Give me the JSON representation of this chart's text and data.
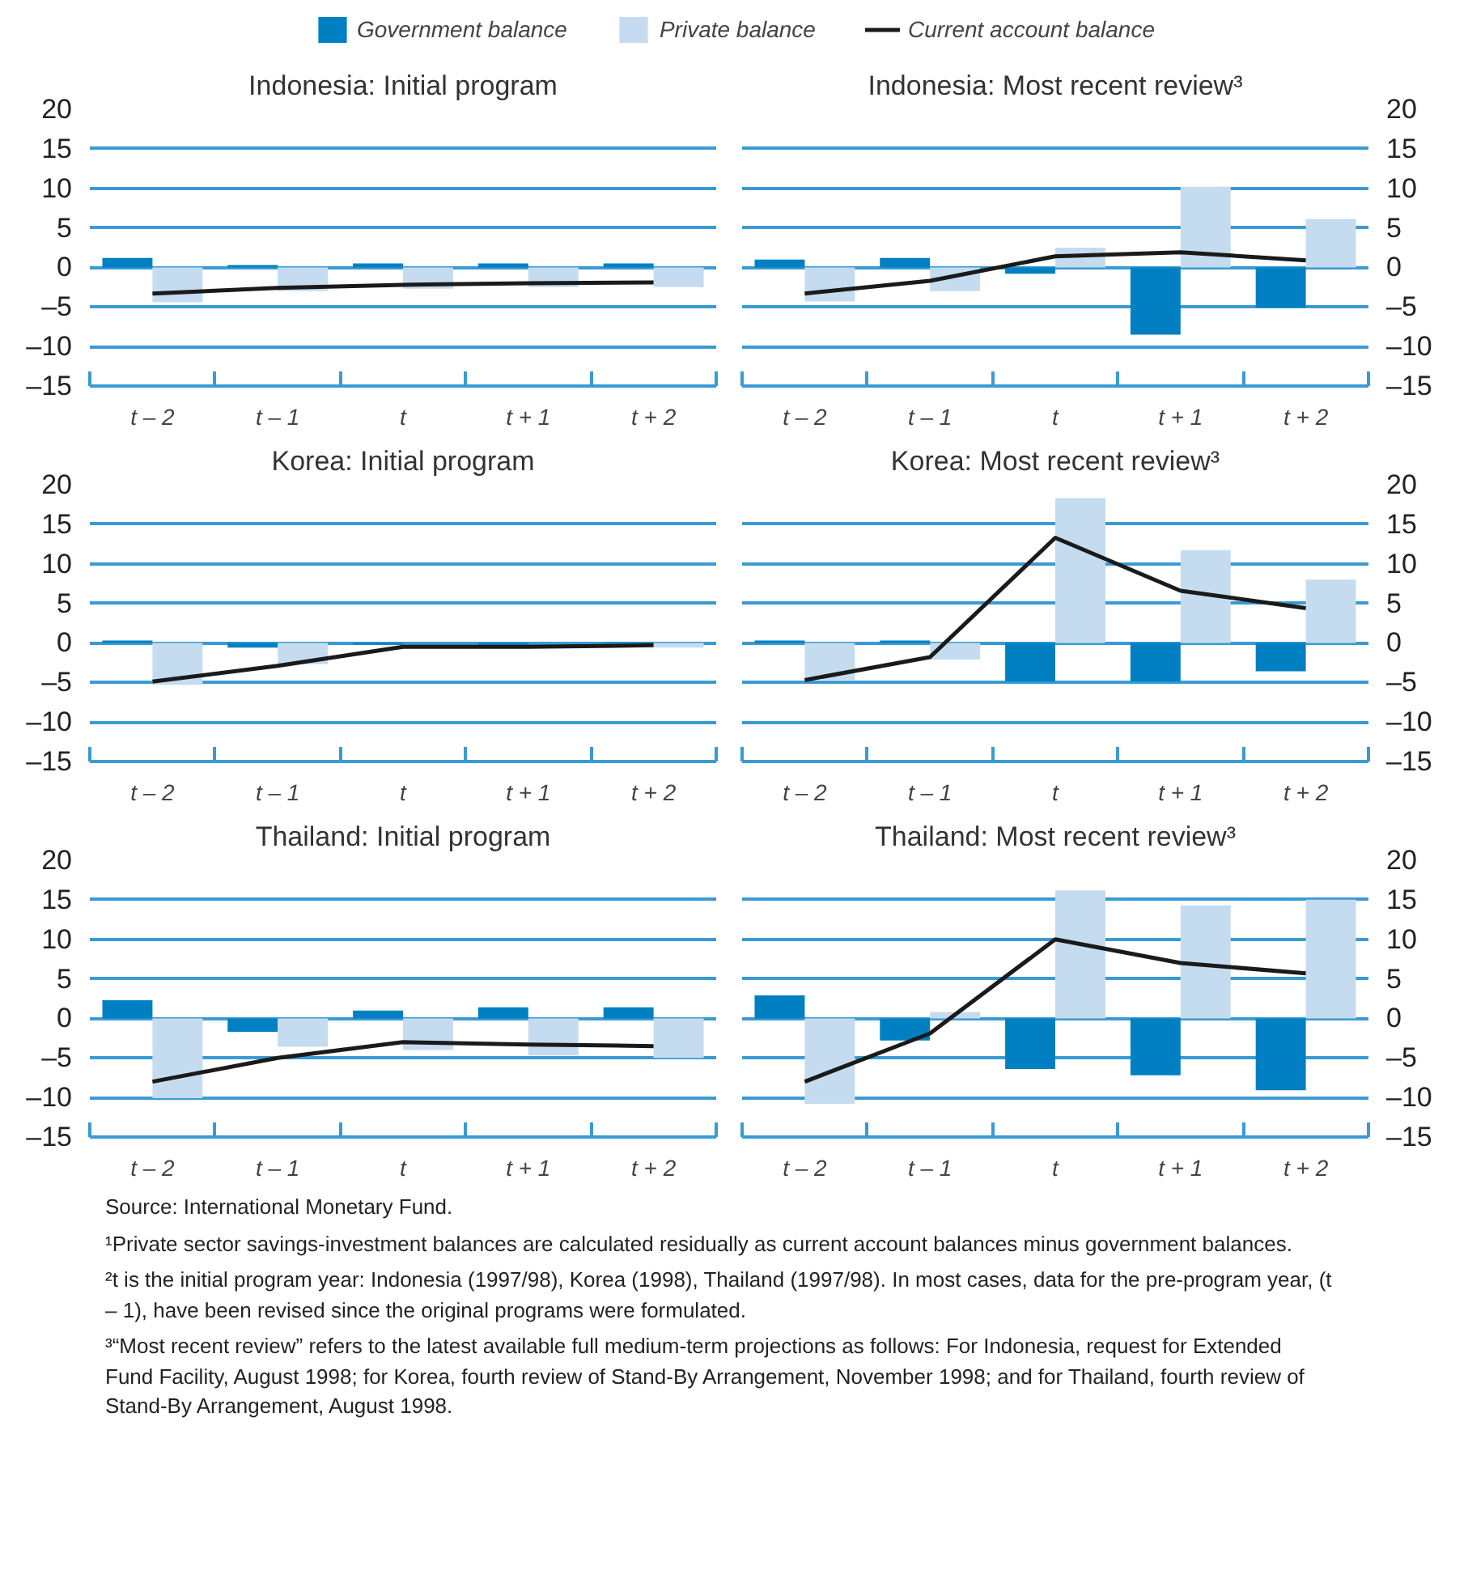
{
  "chart_data": [
    {
      "type": "bar",
      "title": "Indonesia: Initial program",
      "categories": [
        "t – 2",
        "t – 1",
        "t",
        "t + 1",
        "t + 2"
      ],
      "legend": "top",
      "grid": "y",
      "ylim": [
        -15,
        20
      ],
      "yticks": [
        {
          "value": -15,
          "label": "–15"
        },
        {
          "value": -10,
          "label": "–10"
        },
        {
          "value": -5,
          "label": "–5"
        },
        0,
        5,
        10,
        15,
        20
      ],
      "series": [
        {
          "name": "Government balance",
          "color": "#0080c3",
          "values": [
            1.2,
            0.3,
            0.5,
            0.5,
            0.5
          ]
        },
        {
          "name": "Private balance",
          "color": "#c5dbef",
          "values": [
            -4.4,
            -3.0,
            -2.7,
            -2.5,
            -2.5
          ]
        },
        {
          "name": "Current account balance",
          "type": "line",
          "color": "#1a1a1a",
          "values": [
            -3.3,
            -2.6,
            -2.2,
            -2.0,
            -1.9
          ]
        }
      ]
    },
    {
      "type": "bar",
      "title": "Indonesia: Most recent review³",
      "categories": [
        "t – 2",
        "t – 1",
        "t",
        "t + 1",
        "t + 2"
      ],
      "grid": "y",
      "ylim": [
        -15,
        20
      ],
      "yticks": [
        {
          "value": -15,
          "label": "–15"
        },
        {
          "value": -10,
          "label": "–10"
        },
        {
          "value": -5,
          "label": "–5"
        },
        0,
        5,
        10,
        15,
        20
      ],
      "series": [
        {
          "color": "#0080c3",
          "values": [
            1.0,
            1.2,
            -0.8,
            -8.5,
            -5.1
          ]
        },
        {
          "color": "#c5dbef",
          "values": [
            -4.3,
            -3.0,
            2.5,
            10.2,
            6.1
          ]
        },
        {
          "type": "line",
          "color": "#1a1a1a",
          "values": [
            -3.3,
            -1.7,
            1.4,
            1.9,
            0.9
          ]
        }
      ]
    },
    {
      "type": "bar",
      "title": "Korea: Initial program",
      "categories": [
        "t – 2",
        "t – 1",
        "t",
        "t + 1",
        "t + 2"
      ],
      "grid": "y",
      "ylim": [
        -15,
        20
      ],
      "yticks": [
        {
          "value": -15,
          "label": "–15"
        },
        {
          "value": -10,
          "label": "–10"
        },
        {
          "value": -5,
          "label": "–5"
        },
        0,
        5,
        10,
        15,
        20
      ],
      "series": [
        {
          "color": "#0080c3",
          "values": [
            0.3,
            -0.6,
            -0.2,
            -0.2,
            0.1
          ]
        },
        {
          "color": "#c5dbef",
          "values": [
            -5.3,
            -2.7,
            null,
            null,
            -0.6
          ]
        },
        {
          "type": "line",
          "color": "#1a1a1a",
          "values": [
            -4.9,
            -2.9,
            -0.5,
            -0.5,
            -0.3
          ]
        }
      ]
    },
    {
      "type": "bar",
      "title": "Korea: Most recent review³",
      "categories": [
        "t – 2",
        "t – 1",
        "t",
        "t + 1",
        "t + 2"
      ],
      "grid": "y",
      "ylim": [
        -15,
        20
      ],
      "yticks": [
        {
          "value": -15,
          "label": "–15"
        },
        {
          "value": -10,
          "label": "–10"
        },
        {
          "value": -5,
          "label": "–5"
        },
        0,
        5,
        10,
        15,
        20
      ],
      "series": [
        {
          "color": "#0080c3",
          "values": [
            0.3,
            0.3,
            -4.9,
            -4.9,
            -3.6
          ]
        },
        {
          "color": "#c5dbef",
          "values": [
            -4.7,
            -2.1,
            18.3,
            11.7,
            8.0
          ]
        },
        {
          "type": "line",
          "color": "#1a1a1a",
          "values": [
            -4.7,
            -1.8,
            13.3,
            6.6,
            4.4
          ]
        }
      ]
    },
    {
      "type": "bar",
      "title": "Thailand: Initial program",
      "categories": [
        "t – 2",
        "t – 1",
        "t",
        "t + 1",
        "t + 2"
      ],
      "grid": "y",
      "ylim": [
        -15,
        20
      ],
      "yticks": [
        {
          "value": -15,
          "label": "–15"
        },
        {
          "value": -10,
          "label": "–10"
        },
        {
          "value": -5,
          "label": "–5"
        },
        0,
        5,
        10,
        15,
        20
      ],
      "series": [
        {
          "color": "#0080c3",
          "values": [
            2.3,
            -1.7,
            1.0,
            1.4,
            1.4
          ]
        },
        {
          "color": "#c5dbef",
          "values": [
            -10.1,
            -3.6,
            -4.0,
            -4.7,
            -5.0
          ]
        },
        {
          "type": "line",
          "color": "#1a1a1a",
          "values": [
            -8.0,
            -5.0,
            -3.0,
            -3.3,
            -3.5
          ]
        }
      ]
    },
    {
      "type": "bar",
      "title": "Thailand: Most recent review³",
      "categories": [
        "t – 2",
        "t – 1",
        "t",
        "t + 1",
        "t + 2"
      ],
      "grid": "y",
      "ylim": [
        -15,
        20
      ],
      "yticks": [
        {
          "value": -15,
          "label": "–15"
        },
        {
          "value": -10,
          "label": "–10"
        },
        {
          "value": -5,
          "label": "–5"
        },
        0,
        5,
        10,
        15,
        20
      ],
      "series": [
        {
          "color": "#0080c3",
          "values": [
            2.9,
            -2.8,
            -6.4,
            -7.2,
            -9.1
          ]
        },
        {
          "color": "#c5dbef",
          "values": [
            -10.8,
            0.8,
            16.2,
            14.3,
            15.0
          ]
        },
        {
          "type": "line",
          "color": "#1a1a1a",
          "values": [
            -8.0,
            -1.9,
            10.0,
            7.0,
            5.7
          ]
        }
      ],
      "annotations": [
        "Source: International Monetary Fund.",
        "¹Private sector savings-investment balances are calculated residually as current account balances minus government balances.",
        "²t is the initial program year: Indonesia (1997/98), Korea (1998), Thailand (1997/98). In most cases, data for the pre-program year, (t – 1), have been revised since the original programs were formulated.",
        "³“Most recent review” refers to the latest available full medium-term projections as follows: For Indonesia, request for Extended Fund Facility, August 1998; for Korea, fourth review of Stand-By Arrangement, November 1998; and for Thailand, fourth review of Stand-By Arrangement, August 1998."
      ]
    }
  ]
}
